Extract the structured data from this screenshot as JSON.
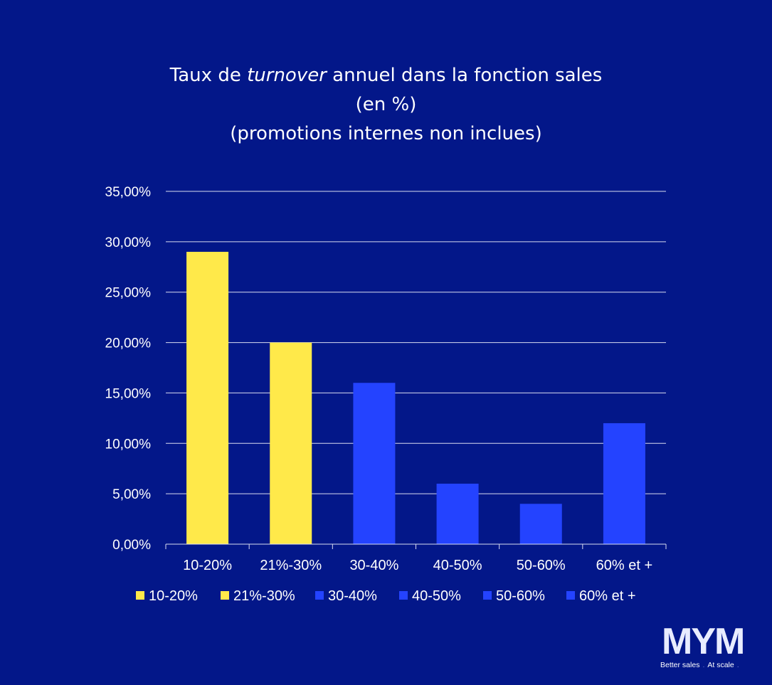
{
  "chart_data": {
    "type": "bar",
    "title_lines": [
      {
        "pre": "Taux de ",
        "em": "turnover",
        "post": " annuel dans la fonction sales"
      },
      {
        "pre": "(en %)",
        "em": "",
        "post": ""
      },
      {
        "pre": "(promotions internes non inclues)",
        "em": "",
        "post": ""
      }
    ],
    "categories": [
      "10-20%",
      "21%-30%",
      "30-40%",
      "40-50%",
      "50-60%",
      "60% et +"
    ],
    "values": [
      29,
      20,
      16,
      6,
      4,
      12
    ],
    "colors": [
      "#FFE94A",
      "#FFE94A",
      "#2443FF",
      "#2443FF",
      "#2443FF",
      "#2443FF"
    ],
    "ylim": [
      0,
      35
    ],
    "yticks": [
      0,
      5,
      10,
      15,
      20,
      25,
      30,
      35
    ],
    "ytick_labels": [
      "0,00%",
      "5,00%",
      "10,00%",
      "15,00%",
      "20,00%",
      "25,00%",
      "30,00%",
      "35,00%"
    ],
    "grid": true,
    "legend": {
      "position": "bottom",
      "entries": [
        "10-20%",
        "21%-30%",
        "30-40%",
        "40-50%",
        "50-60%",
        "60% et +"
      ]
    }
  },
  "logo": {
    "mark": "MYM",
    "tagline_1": "Better sales",
    "tagline_sep": ".",
    "tagline_2": "At scale",
    "tagline_end": "."
  }
}
